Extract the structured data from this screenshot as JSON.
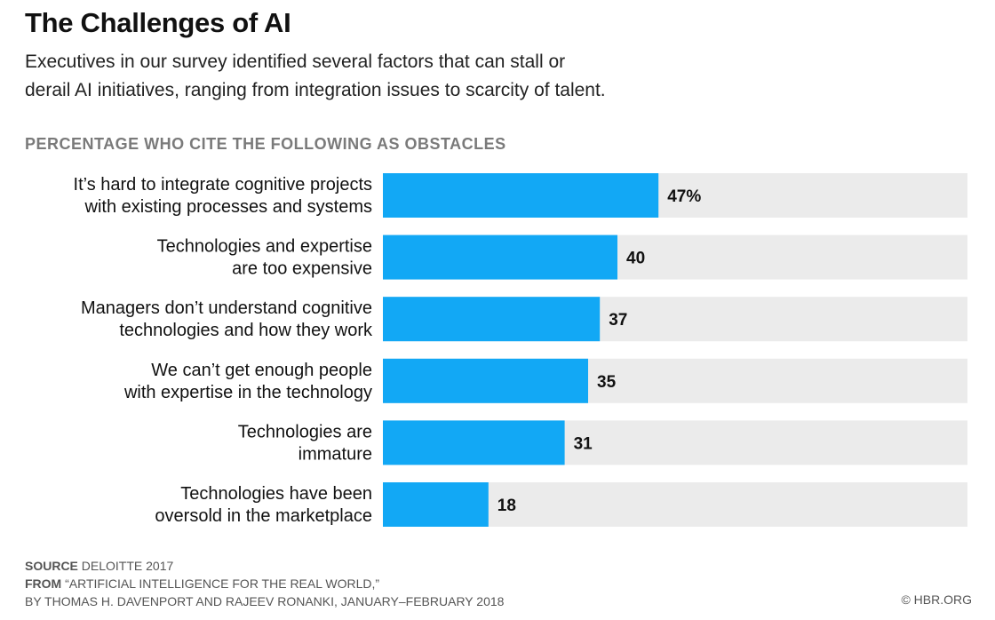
{
  "title": "The Challenges of AI",
  "subtitle_line1": "Executives in our survey identified several factors that can stall or",
  "subtitle_line2": "derail AI initiatives, ranging from integration issues to scarcity of talent.",
  "section_label": "PERCENTAGE WHO CITE THE FOLLOWING AS OBSTACLES",
  "colors": {
    "bar": "#12a8f5",
    "track": "#ebebeb",
    "text": "#111111",
    "muted": "#666666"
  },
  "chart_data": {
    "type": "bar",
    "orientation": "horizontal",
    "categories": [
      [
        "It’s hard to integrate cognitive projects",
        "with existing processes and systems"
      ],
      [
        "Technologies and expertise",
        "are too expensive"
      ],
      [
        "Managers don’t understand cognitive",
        "technologies and how they work"
      ],
      [
        "We can’t get enough people",
        "with expertise in the technology"
      ],
      [
        "Technologies are",
        "immature"
      ],
      [
        "Technologies have been",
        "oversold in the marketplace"
      ]
    ],
    "values": [
      47,
      40,
      37,
      35,
      31,
      18
    ],
    "value_labels": [
      "47%",
      "40",
      "37",
      "35",
      "31",
      "18"
    ],
    "xlim": [
      0,
      100
    ],
    "grid": false
  },
  "footer": {
    "source_key": "SOURCE",
    "source_value": "DELOITTE 2017",
    "from_key": "FROM",
    "from_value": "“ARTIFICIAL INTELLIGENCE FOR THE REAL WORLD,”",
    "byline": "BY THOMAS H. DAVENPORT AND RAJEEV RONANKI, JANUARY–FEBRUARY 2018",
    "credit": "© HBR.ORG"
  }
}
